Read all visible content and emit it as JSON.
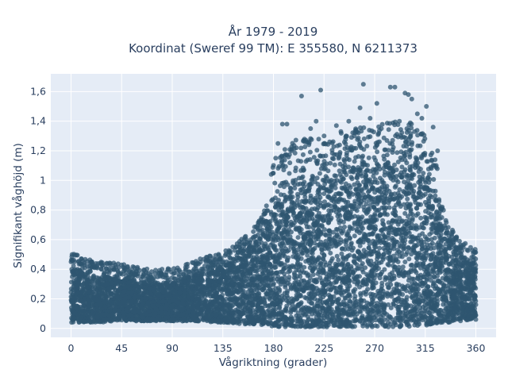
{
  "title": {
    "line1": "År 1979 - 2019",
    "line2": "Koordinat (Sweref 99 TM): E 355580, N 6211373"
  },
  "chart_data": {
    "type": "scatter",
    "xlabel": "Vågriktning (grader)",
    "ylabel": "Signifikant våghöjd (m)",
    "xlim": [
      -18,
      378
    ],
    "ylim": [
      -0.06,
      1.72
    ],
    "x_ticks": [
      0,
      45,
      90,
      135,
      180,
      225,
      270,
      315,
      360
    ],
    "x_tick_labels": [
      "0",
      "45",
      "90",
      "135",
      "180",
      "225",
      "270",
      "315",
      "360"
    ],
    "y_ticks": [
      0,
      0.2,
      0.4,
      0.6,
      0.8,
      1.0,
      1.2,
      1.4,
      1.6
    ],
    "y_tick_labels": [
      "0",
      "0,2",
      "0,4",
      "0,6",
      "0,8",
      "1",
      "1,2",
      "1,4",
      "1,6"
    ],
    "grid": true,
    "colors": {
      "plot_bg": "#e5ecf6",
      "grid": "#ffffff",
      "marker": "#2f5670",
      "text": "#2a3f5f"
    },
    "envelope": [
      {
        "x": 0,
        "lo": 0.04,
        "hi": 0.42
      },
      {
        "x": 20,
        "lo": 0.04,
        "hi": 0.36
      },
      {
        "x": 45,
        "lo": 0.05,
        "hi": 0.34
      },
      {
        "x": 70,
        "lo": 0.05,
        "hi": 0.3
      },
      {
        "x": 90,
        "lo": 0.05,
        "hi": 0.31
      },
      {
        "x": 110,
        "lo": 0.05,
        "hi": 0.36
      },
      {
        "x": 135,
        "lo": 0.04,
        "hi": 0.42
      },
      {
        "x": 150,
        "lo": 0.03,
        "hi": 0.5
      },
      {
        "x": 165,
        "lo": 0.03,
        "hi": 0.6
      },
      {
        "x": 175,
        "lo": 0.02,
        "hi": 0.75
      },
      {
        "x": 185,
        "lo": 0.01,
        "hi": 0.95
      },
      {
        "x": 200,
        "lo": 0.01,
        "hi": 1.02
      },
      {
        "x": 225,
        "lo": 0.01,
        "hi": 1.02
      },
      {
        "x": 250,
        "lo": 0.01,
        "hi": 1.08
      },
      {
        "x": 275,
        "lo": 0.01,
        "hi": 1.12
      },
      {
        "x": 300,
        "lo": 0.01,
        "hi": 1.15
      },
      {
        "x": 315,
        "lo": 0.02,
        "hi": 1.08
      },
      {
        "x": 325,
        "lo": 0.03,
        "hi": 0.85
      },
      {
        "x": 335,
        "lo": 0.04,
        "hi": 0.62
      },
      {
        "x": 345,
        "lo": 0.05,
        "hi": 0.5
      },
      {
        "x": 360,
        "lo": 0.06,
        "hi": 0.44
      }
    ],
    "outliers": [
      {
        "x": 0,
        "y": 0.45
      },
      {
        "x": 3,
        "y": 0.45
      },
      {
        "x": 8,
        "y": 0.44
      },
      {
        "x": 27,
        "y": 0.4
      },
      {
        "x": 35,
        "y": 0.44
      },
      {
        "x": 52,
        "y": 0.36
      },
      {
        "x": 85,
        "y": 0.38
      },
      {
        "x": 120,
        "y": 0.46
      },
      {
        "x": 130,
        "y": 0.45
      },
      {
        "x": 150,
        "y": 0.55
      },
      {
        "x": 163,
        "y": 0.62
      },
      {
        "x": 178,
        "y": 1.04
      },
      {
        "x": 182,
        "y": 1.15
      },
      {
        "x": 184,
        "y": 1.25
      },
      {
        "x": 188,
        "y": 1.38
      },
      {
        "x": 192,
        "y": 1.38
      },
      {
        "x": 196,
        "y": 1.2
      },
      {
        "x": 205,
        "y": 1.57
      },
      {
        "x": 208,
        "y": 1.26
      },
      {
        "x": 213,
        "y": 1.35
      },
      {
        "x": 218,
        "y": 1.4
      },
      {
        "x": 222,
        "y": 1.61
      },
      {
        "x": 225,
        "y": 1.3
      },
      {
        "x": 230,
        "y": 1.26
      },
      {
        "x": 236,
        "y": 1.37
      },
      {
        "x": 240,
        "y": 1.33
      },
      {
        "x": 247,
        "y": 1.4
      },
      {
        "x": 252,
        "y": 1.3
      },
      {
        "x": 257,
        "y": 1.49
      },
      {
        "x": 260,
        "y": 1.65
      },
      {
        "x": 266,
        "y": 1.42
      },
      {
        "x": 272,
        "y": 1.52
      },
      {
        "x": 276,
        "y": 1.35
      },
      {
        "x": 284,
        "y": 1.63
      },
      {
        "x": 288,
        "y": 1.63
      },
      {
        "x": 292,
        "y": 1.4
      },
      {
        "x": 297,
        "y": 1.59
      },
      {
        "x": 300,
        "y": 1.58
      },
      {
        "x": 303,
        "y": 1.55
      },
      {
        "x": 308,
        "y": 1.45
      },
      {
        "x": 312,
        "y": 1.42
      },
      {
        "x": 316,
        "y": 1.5
      },
      {
        "x": 322,
        "y": 1.36
      },
      {
        "x": 326,
        "y": 1.2
      },
      {
        "x": 340,
        "y": 0.58
      },
      {
        "x": 347,
        "y": 0.5
      },
      {
        "x": 358,
        "y": 0.46
      }
    ]
  }
}
